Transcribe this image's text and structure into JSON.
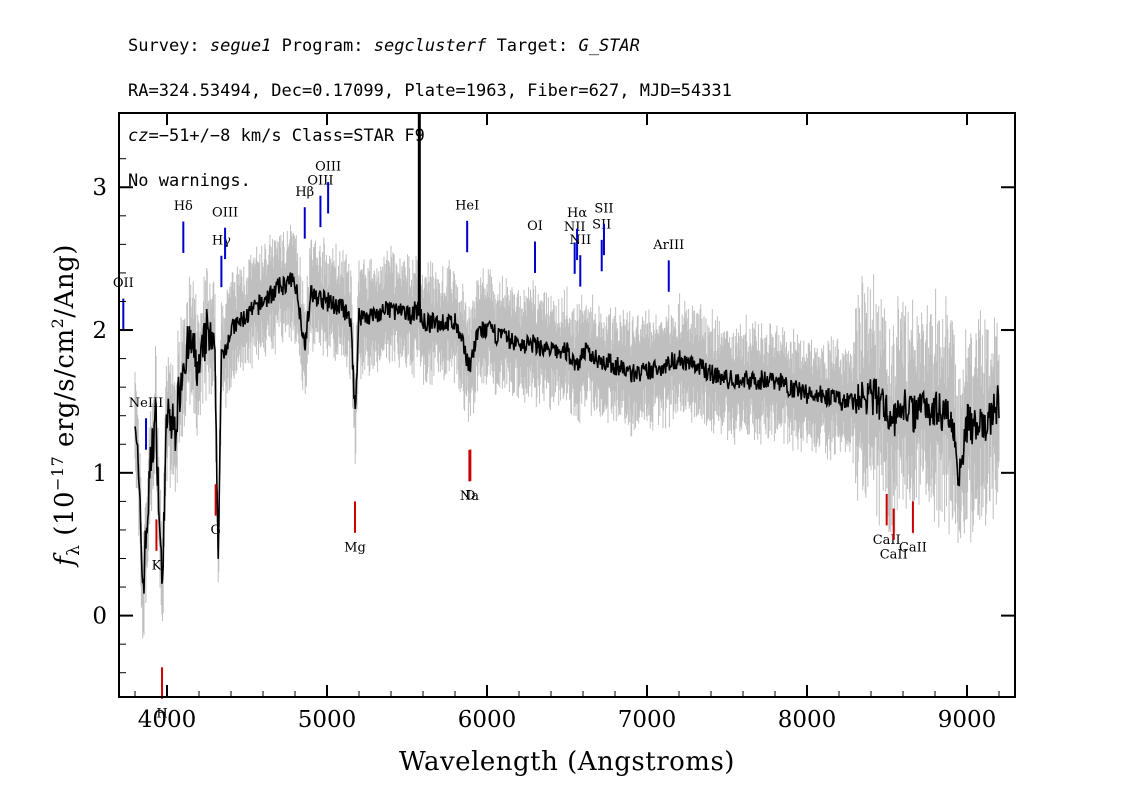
{
  "header": {
    "survey_label": "Survey:",
    "survey": "segue1",
    "program_label": "Program:",
    "program": "segclusterf",
    "target_label": "Target:",
    "target": "G_STAR",
    "line2": "RA=324.53494, Dec=0.17099, Plate=1963, Fiber=627, MJD=54331",
    "cz_label": "cz",
    "cz_rest": "=−51+/−8",
    "cz_tail": "km/s Class=STAR F9",
    "warnings": "No warnings."
  },
  "chart_data": {
    "type": "line",
    "xlabel": "Wavelength (Angstroms)",
    "ylabel": "f_λ (10^-17 erg/s/cm^2/Ang)",
    "xlim": [
      3700,
      9300
    ],
    "ylim": [
      -0.57,
      3.52
    ],
    "xticks": [
      "4000",
      "5000",
      "6000",
      "7000",
      "8000",
      "9000"
    ],
    "yticks": [
      "0",
      "1",
      "2",
      "3"
    ],
    "series": [
      {
        "color": "#000000",
        "x": [
          3800,
          3850,
          3900,
          3930,
          3968,
          4000,
          4050,
          4102,
          4150,
          4200,
          4250,
          4300,
          4320,
          4340,
          4400,
          4500,
          4600,
          4700,
          4800,
          4861,
          4900,
          5000,
          5100,
          5150,
          5175,
          5200,
          5300,
          5400,
          5500,
          5577,
          5600,
          5700,
          5800,
          5893,
          5950,
          6000,
          6100,
          6200,
          6300,
          6400,
          6500,
          6563,
          6600,
          6700,
          6800,
          6900,
          7000,
          7100,
          7200,
          7300,
          7400,
          7500,
          7600,
          7700,
          7800,
          7900,
          8000,
          8100,
          8200,
          8300,
          8400,
          8500,
          8542,
          8600,
          8662,
          8700,
          8800,
          8900,
          8950,
          9000,
          9100,
          9200
        ],
        "y": [
          1.5,
          0.2,
          1.1,
          1.4,
          0.2,
          1.4,
          1.3,
          1.8,
          1.9,
          1.7,
          2.0,
          1.8,
          0.4,
          1.8,
          2.0,
          2.1,
          2.2,
          2.3,
          2.35,
          1.9,
          2.25,
          2.2,
          2.15,
          2.05,
          1.4,
          2.1,
          2.1,
          2.15,
          2.1,
          2.15,
          2.05,
          2.05,
          2.05,
          1.75,
          2.0,
          2.0,
          1.95,
          1.9,
          1.9,
          1.85,
          1.85,
          1.75,
          1.85,
          1.8,
          1.75,
          1.7,
          1.7,
          1.75,
          1.8,
          1.75,
          1.7,
          1.65,
          1.65,
          1.65,
          1.65,
          1.6,
          1.55,
          1.55,
          1.5,
          1.5,
          1.55,
          1.45,
          1.35,
          1.5,
          1.4,
          1.5,
          1.45,
          1.4,
          1.0,
          1.35,
          1.3,
          1.5
        ]
      }
    ],
    "emission_lines": [
      {
        "label": "OII",
        "wavelength": 3727
      },
      {
        "label": "NeIII",
        "wavelength": 3869
      },
      {
        "label": "Hδ",
        "wavelength": 4102
      },
      {
        "label": "Hγ",
        "wavelength": 4340
      },
      {
        "label": "OIII",
        "wavelength": 4363
      },
      {
        "label": "Hβ",
        "wavelength": 4861
      },
      {
        "label": "OIII",
        "wavelength": 4959
      },
      {
        "label": "OIII",
        "wavelength": 5007
      },
      {
        "label": "HeI",
        "wavelength": 5876
      },
      {
        "label": "OI",
        "wavelength": 6300
      },
      {
        "label": "NII",
        "wavelength": 6548
      },
      {
        "label": "Hα",
        "wavelength": 6563
      },
      {
        "label": "NII",
        "wavelength": 6583
      },
      {
        "label": "SII",
        "wavelength": 6717
      },
      {
        "label": "SII",
        "wavelength": 6731
      },
      {
        "label": "ArIII",
        "wavelength": 7136
      }
    ],
    "absorption_lines": [
      {
        "label": "K",
        "wavelength": 3934
      },
      {
        "label": "H",
        "wavelength": 3969
      },
      {
        "label": "G",
        "wavelength": 4304
      },
      {
        "label": "Mg",
        "wavelength": 5175
      },
      {
        "label": "Na",
        "wavelength": 5890
      },
      {
        "label": "D",
        "wavelength": 5896
      },
      {
        "label": "CaII",
        "wavelength": 8498
      },
      {
        "label": "CaII",
        "wavelength": 8542
      },
      {
        "label": "CaII",
        "wavelength": 8662
      }
    ],
    "colors": {
      "spectrum": "#000000",
      "noise": "#bfbfbf",
      "emission": "#0000cc",
      "absorption": "#cc0000"
    }
  }
}
